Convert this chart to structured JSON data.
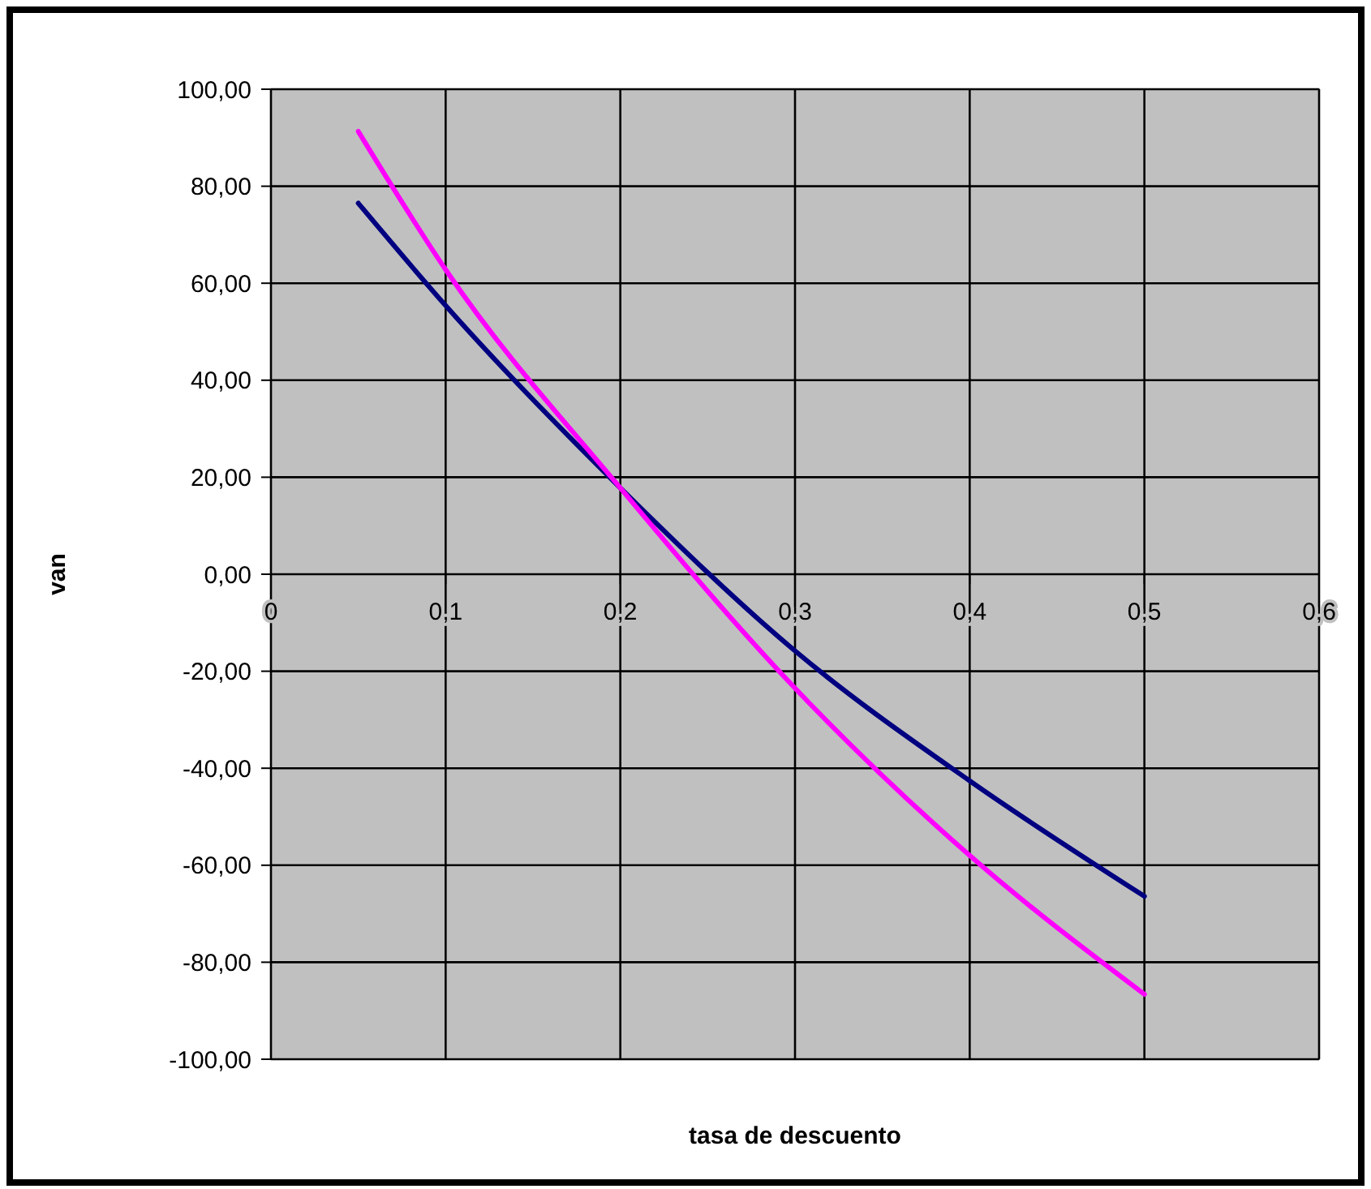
{
  "chart_data": {
    "type": "line",
    "xlabel": "tasa de descuento",
    "ylabel": "van",
    "xlim": [
      0,
      0.6
    ],
    "xticks": [
      0,
      {
        "value": 0.1,
        "label": "0,1"
      },
      {
        "value": 0.2,
        "label": "0,2"
      },
      {
        "value": 0.3,
        "label": "0,3"
      },
      {
        "value": 0.4,
        "label": "0,4"
      },
      {
        "value": 0.5,
        "label": "0,5"
      },
      {
        "value": 0.6,
        "label": "0,6"
      }
    ],
    "ylim": [
      -100,
      100
    ],
    "yticks": [
      {
        "value": -100,
        "label": "-100,00"
      },
      {
        "value": -80,
        "label": "-80,00"
      },
      {
        "value": -60,
        "label": "-60,00"
      },
      {
        "value": -40,
        "label": "-40,00"
      },
      {
        "value": -20,
        "label": "-20,00"
      },
      {
        "value": 0,
        "label": "0,00"
      },
      {
        "value": 20,
        "label": "20,00"
      },
      {
        "value": 40,
        "label": "40,00"
      },
      {
        "value": 60,
        "label": "60,00"
      },
      {
        "value": 80,
        "label": "80,00"
      },
      {
        "value": 100,
        "label": "100,00"
      }
    ],
    "grid": true,
    "marker": "none",
    "line_style": "solid",
    "x": [
      0.05,
      0.1,
      0.2,
      0.3,
      0.4,
      0.5
    ],
    "series": [
      {
        "color": "#000080",
        "values": [
          76.5,
          55.4,
          17.8,
          -15.8,
          -42.6,
          -66.4
        ]
      },
      {
        "color": "#ff00ff",
        "values": [
          91.3,
          62.8,
          17.8,
          -23.5,
          -58,
          -86.6
        ]
      }
    ]
  }
}
